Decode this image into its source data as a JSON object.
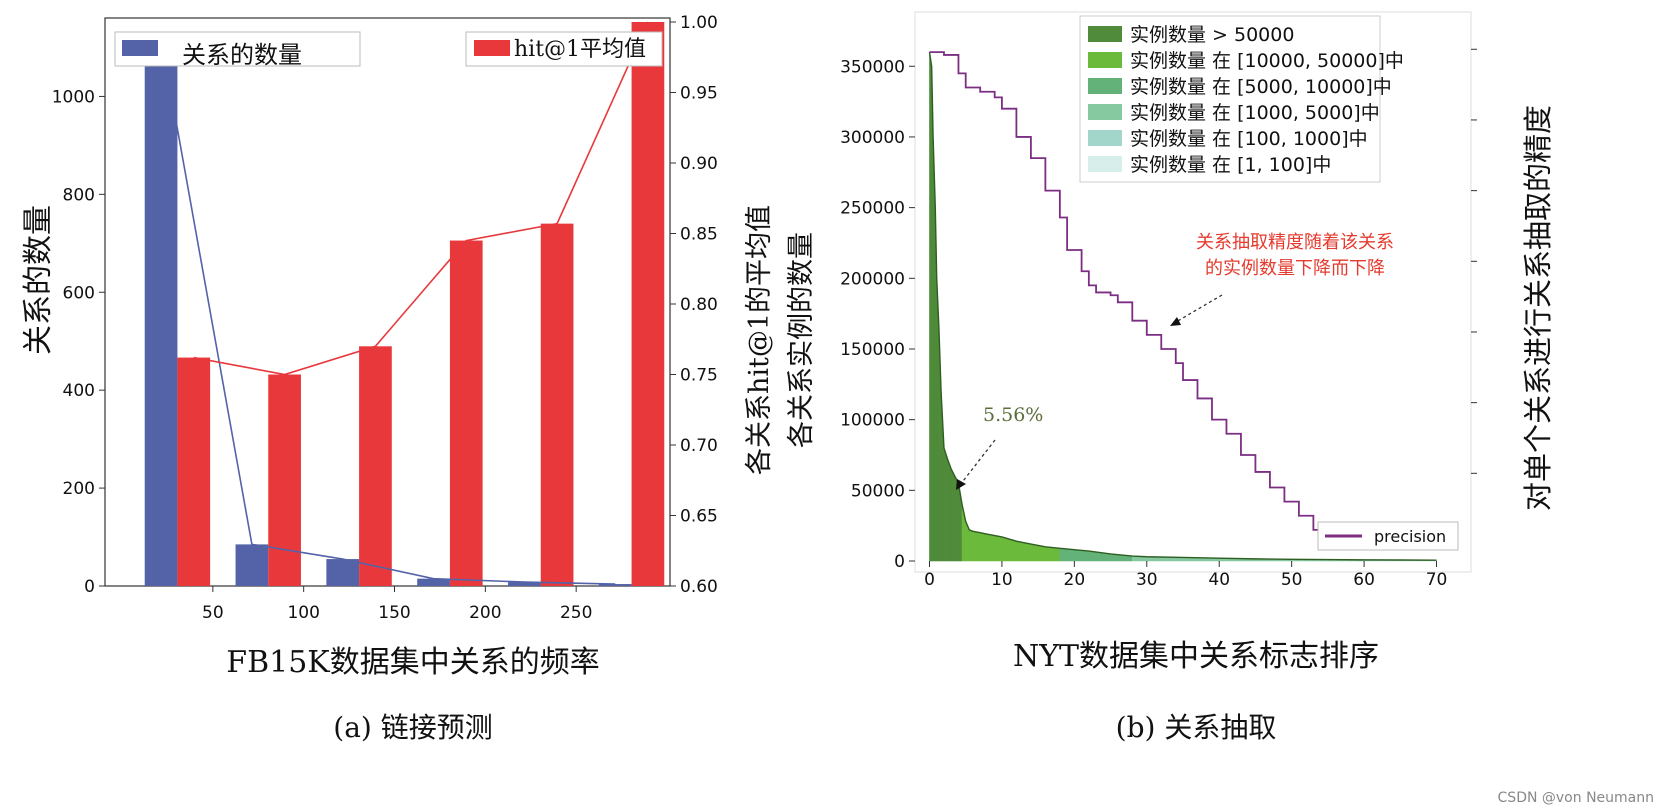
{
  "chart_data": [
    {
      "id": "a",
      "type": "bar",
      "caption": "(a) 链接预测",
      "xlabel": "FB15K数据集中关系的频率",
      "ylabel": "关系的数量",
      "ylabel_right": "各关系hit@1的平均值",
      "ylabel_right2": "各关系实例的数量",
      "xticks": [
        "50",
        "100",
        "150",
        "200",
        "250"
      ],
      "ylim": [
        0,
        1150
      ],
      "yticks": [
        0,
        200,
        400,
        600,
        800,
        1000
      ],
      "y2lim": [
        0.6,
        1.0
      ],
      "y2ticks": [
        "0.60",
        "0.65",
        "0.70",
        "0.75",
        "0.80",
        "0.85",
        "0.90",
        "0.95",
        "1.00"
      ],
      "series": [
        {
          "name": "关系的数量",
          "color": "#5462a8",
          "values": [
            1120,
            85,
            55,
            15,
            8,
            4
          ]
        },
        {
          "name": "hit@1平均值",
          "color": "#e8383c",
          "values": [
            0.762,
            0.75,
            0.77,
            0.845,
            0.857,
            1.0
          ]
        }
      ],
      "grid": false,
      "legend": [
        "top-left",
        "top-right"
      ]
    },
    {
      "id": "b",
      "type": "area",
      "caption": "(b) 关系抽取",
      "xlabel": "NYT数据集中关系标志排序",
      "ylabel_right": "对单个关系进行关系抽取的精度",
      "xlim": [
        -2,
        72
      ],
      "xticks": [
        0,
        10,
        20,
        30,
        40,
        50,
        60,
        70
      ],
      "ylim": [
        0,
        370000
      ],
      "yticks": [
        0,
        50000,
        100000,
        150000,
        200000,
        250000,
        300000,
        350000
      ],
      "legend_bins": [
        {
          "label": "实例数量 > 50000",
          "color": "#4f8b3a"
        },
        {
          "label": "实例数量 在 [10000, 50000]中",
          "color": "#6cba3c"
        },
        {
          "label": "实例数量 在 [5000, 10000]中",
          "color": "#62b27a"
        },
        {
          "label": "实例数量 在 [1000, 5000]中",
          "color": "#86c8a0"
        },
        {
          "label": "实例数量 在 [100, 1000]中",
          "color": "#a3d6ca"
        },
        {
          "label": "实例数量 在 [1, 100]中",
          "color": "#d8eeea"
        }
      ],
      "instances": {
        "x": [
          0,
          0.3,
          0.5,
          0.8,
          1,
          1.3,
          1.6,
          2,
          2.5,
          3,
          3.5,
          4,
          4.5,
          5,
          5.5,
          6,
          7,
          8,
          9,
          10,
          12,
          14,
          16,
          18,
          20,
          22,
          25,
          28,
          30,
          35,
          40,
          45,
          50,
          55,
          60,
          65,
          70
        ],
        "y": [
          360000,
          350000,
          300000,
          250000,
          200000,
          165000,
          120000,
          80000,
          72000,
          65000,
          60000,
          55000,
          40000,
          28000,
          22000,
          21000,
          20000,
          19000,
          18000,
          17000,
          14000,
          12000,
          10000,
          9000,
          8000,
          7000,
          5000,
          3500,
          3000,
          2500,
          2000,
          1500,
          1200,
          1000,
          800,
          700,
          600
        ]
      },
      "precision": {
        "name": "precision",
        "color": "#7b2e83",
        "x": [
          0,
          2,
          4,
          5,
          7,
          9,
          10,
          12,
          14,
          16,
          18,
          19,
          21,
          22,
          23,
          25,
          26,
          28,
          30,
          32,
          34,
          35,
          37,
          39,
          41,
          43,
          45,
          47,
          49,
          51,
          53,
          54
        ],
        "y": [
          360000,
          358000,
          345000,
          335000,
          332000,
          328000,
          320000,
          300000,
          285000,
          262000,
          243000,
          220000,
          205000,
          195000,
          190000,
          188000,
          183000,
          170000,
          160000,
          150000,
          140000,
          128000,
          115000,
          100000,
          90000,
          75000,
          63000,
          52000,
          42000,
          32000,
          22000,
          18000
        ]
      },
      "annotations": [
        {
          "text": "5.56%",
          "color": "#5b6e3a"
        },
        {
          "text": "关系抽取精度随着该关系\n的实例数量下降而下降",
          "color": "#e53a2e"
        }
      ]
    }
  ],
  "watermark": "CSDN @von  Neumann"
}
